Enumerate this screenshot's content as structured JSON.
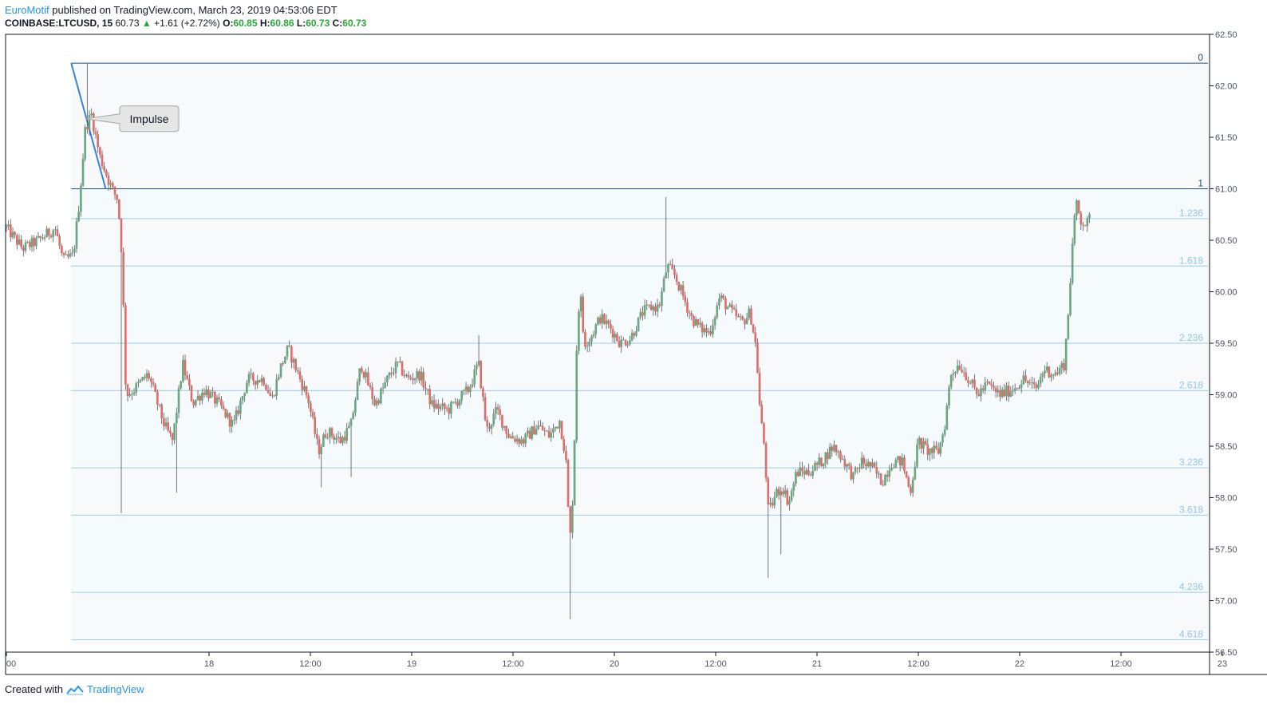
{
  "header": {
    "author": "EuroMotif",
    "published": "published on TradingView.com, March 23, 2019 04:53:06 EDT"
  },
  "quote": {
    "symbol": "COINBASE:LTCUSD, 15",
    "last": "60.73",
    "change": "+1.61 (+2.72%)",
    "o_label": "O:",
    "o": "60.85",
    "h_label": "H:",
    "h": "60.86",
    "l_label": "L:",
    "l": "60.73",
    "c_label": "C:",
    "c": "60.73"
  },
  "footer": {
    "created": "Created with",
    "brand": "TradingView"
  },
  "colors": {
    "up": "#6aa57f",
    "down": "#e06c67",
    "fib_line": "#9dcde0",
    "fib_text": "#93c5e0",
    "fib_fill": "#f5fafd",
    "main_line": "#1b4f84",
    "trend": "#3b82d6"
  },
  "chart_data": {
    "type": "candlestick",
    "ylim": [
      56.5,
      62.5
    ],
    "y_ticks": [
      "62.50",
      "62.00",
      "61.50",
      "61.00",
      "60.50",
      "60.00",
      "59.50",
      "59.00",
      "58.50",
      "58.00",
      "57.50",
      "57.00",
      "56.50"
    ],
    "x_ticks": [
      {
        "label": "00",
        "t": 0
      },
      {
        "label": "18",
        "t": 1
      },
      {
        "label": "12:00",
        "t": 1.5
      },
      {
        "label": "19",
        "t": 2
      },
      {
        "label": "12:00",
        "t": 2.5
      },
      {
        "label": "20",
        "t": 3
      },
      {
        "label": "12:00",
        "t": 3.5
      },
      {
        "label": "21",
        "t": 4
      },
      {
        "label": "12:00",
        "t": 4.5
      },
      {
        "label": "22",
        "t": 5
      },
      {
        "label": "12:00",
        "t": 5.5
      },
      {
        "label": "23",
        "t": 6
      }
    ],
    "fib_levels": [
      {
        "label": "0",
        "price": 62.22
      },
      {
        "label": "1",
        "price": 61.0
      },
      {
        "label": "1.236",
        "price": 60.71
      },
      {
        "label": "1.618",
        "price": 60.25
      },
      {
        "label": "2.236",
        "price": 59.5
      },
      {
        "label": "2.618",
        "price": 59.04
      },
      {
        "label": "3.236",
        "price": 58.29
      },
      {
        "label": "3.618",
        "price": 57.83
      },
      {
        "label": "4.236",
        "price": 57.08
      },
      {
        "label": "4.618",
        "price": 56.62
      }
    ],
    "fib_start_t": 0.32,
    "trend_line": {
      "from": {
        "t": 0.32,
        "price": 62.22
      },
      "to": {
        "t": 0.49,
        "price": 61.0
      }
    },
    "annotation": {
      "text": "Impulse",
      "t": 0.39,
      "price": 61.68
    },
    "waypoints": [
      [
        0.0,
        60.62
      ],
      [
        0.08,
        60.42
      ],
      [
        0.16,
        60.5
      ],
      [
        0.24,
        60.62
      ],
      [
        0.28,
        60.3
      ],
      [
        0.33,
        60.35
      ],
      [
        0.36,
        60.88
      ],
      [
        0.39,
        61.6
      ],
      [
        0.42,
        61.72
      ],
      [
        0.46,
        61.32
      ],
      [
        0.52,
        61.0
      ],
      [
        0.55,
        60.9
      ],
      [
        0.57,
        60.35
      ],
      [
        0.59,
        59.0
      ],
      [
        0.63,
        59.05
      ],
      [
        0.7,
        59.2
      ],
      [
        0.78,
        58.7
      ],
      [
        0.82,
        58.55
      ],
      [
        0.87,
        59.3
      ],
      [
        0.92,
        58.92
      ],
      [
        0.98,
        59.05
      ],
      [
        1.05,
        58.9
      ],
      [
        1.12,
        58.7
      ],
      [
        1.19,
        59.15
      ],
      [
        1.27,
        59.15
      ],
      [
        1.31,
        58.95
      ],
      [
        1.35,
        59.25
      ],
      [
        1.39,
        59.45
      ],
      [
        1.44,
        59.2
      ],
      [
        1.49,
        58.95
      ],
      [
        1.54,
        58.45
      ],
      [
        1.58,
        58.65
      ],
      [
        1.65,
        58.55
      ],
      [
        1.7,
        58.7
      ],
      [
        1.75,
        59.3
      ],
      [
        1.82,
        58.9
      ],
      [
        1.88,
        59.15
      ],
      [
        1.93,
        59.3
      ],
      [
        1.98,
        59.15
      ],
      [
        2.04,
        59.2
      ],
      [
        2.1,
        58.9
      ],
      [
        2.18,
        58.85
      ],
      [
        2.28,
        59.05
      ],
      [
        2.33,
        59.3
      ],
      [
        2.37,
        58.65
      ],
      [
        2.42,
        58.85
      ],
      [
        2.48,
        58.6
      ],
      [
        2.55,
        58.55
      ],
      [
        2.62,
        58.7
      ],
      [
        2.68,
        58.6
      ],
      [
        2.73,
        58.75
      ],
      [
        2.76,
        58.4
      ],
      [
        2.78,
        57.55
      ],
      [
        2.8,
        58.2
      ],
      [
        2.81,
        59.3
      ],
      [
        2.83,
        60.05
      ],
      [
        2.85,
        59.5
      ],
      [
        2.88,
        59.55
      ],
      [
        2.93,
        59.75
      ],
      [
        2.98,
        59.65
      ],
      [
        3.03,
        59.5
      ],
      [
        3.08,
        59.55
      ],
      [
        3.14,
        59.8
      ],
      [
        3.18,
        59.85
      ],
      [
        3.22,
        59.85
      ],
      [
        3.26,
        60.25
      ],
      [
        3.3,
        60.15
      ],
      [
        3.34,
        59.95
      ],
      [
        3.38,
        59.75
      ],
      [
        3.42,
        59.65
      ],
      [
        3.47,
        59.6
      ],
      [
        3.52,
        59.95
      ],
      [
        3.58,
        59.8
      ],
      [
        3.63,
        59.7
      ],
      [
        3.67,
        59.8
      ],
      [
        3.7,
        59.45
      ],
      [
        3.72,
        58.8
      ],
      [
        3.74,
        58.5
      ],
      [
        3.76,
        57.85
      ],
      [
        3.8,
        58.05
      ],
      [
        3.83,
        58.1
      ],
      [
        3.86,
        57.95
      ],
      [
        3.9,
        58.25
      ],
      [
        3.96,
        58.25
      ],
      [
        4.02,
        58.35
      ],
      [
        4.08,
        58.5
      ],
      [
        4.12,
        58.4
      ],
      [
        4.18,
        58.2
      ],
      [
        4.22,
        58.35
      ],
      [
        4.27,
        58.3
      ],
      [
        4.32,
        58.15
      ],
      [
        4.37,
        58.35
      ],
      [
        4.42,
        58.35
      ],
      [
        4.46,
        58.05
      ],
      [
        4.5,
        58.55
      ],
      [
        4.55,
        58.45
      ],
      [
        4.6,
        58.45
      ],
      [
        4.63,
        58.7
      ],
      [
        4.66,
        59.2
      ],
      [
        4.7,
        59.3
      ],
      [
        4.75,
        59.15
      ],
      [
        4.79,
        59.0
      ],
      [
        4.84,
        59.1
      ],
      [
        4.9,
        59.0
      ],
      [
        4.96,
        59.05
      ],
      [
        5.02,
        59.15
      ],
      [
        5.08,
        59.05
      ],
      [
        5.12,
        59.25
      ],
      [
        5.18,
        59.2
      ],
      [
        5.22,
        59.3
      ],
      [
        5.24,
        59.8
      ],
      [
        5.26,
        60.45
      ],
      [
        5.28,
        60.88
      ],
      [
        5.3,
        60.7
      ],
      [
        5.33,
        60.65
      ],
      [
        5.35,
        60.73
      ]
    ]
  }
}
